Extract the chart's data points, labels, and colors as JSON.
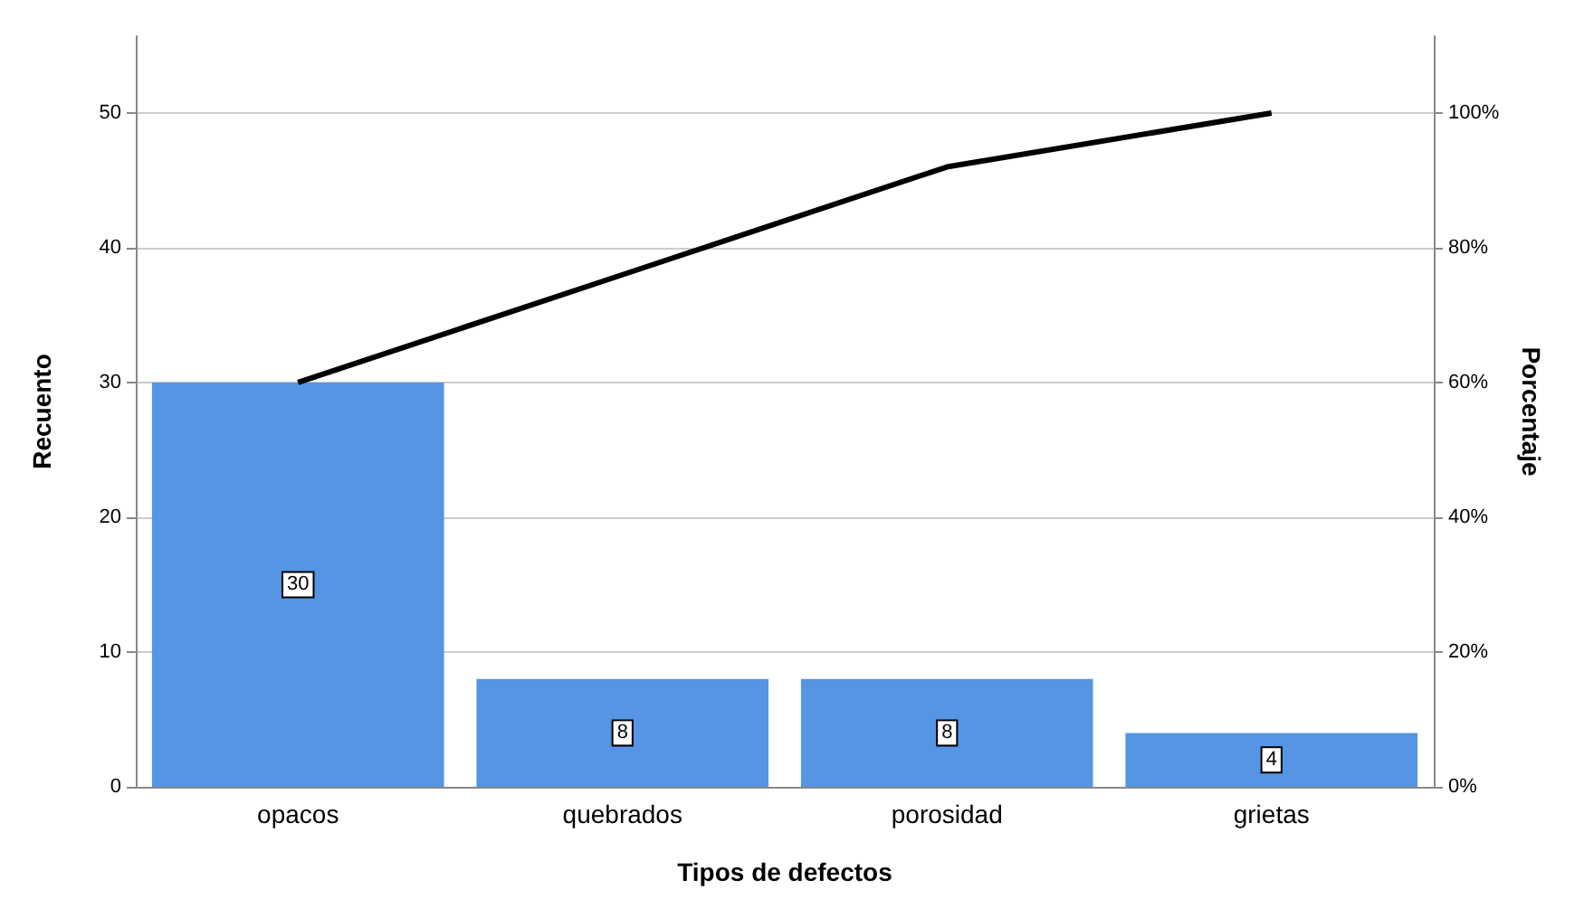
{
  "chart_data": {
    "type": "bar",
    "xlabel": "Tipos de defectos",
    "ylabel": "Recuento",
    "y2label": "Porcentaje",
    "categories": [
      "opacos",
      "quebrados",
      "porosidad",
      "grietas"
    ],
    "series": [
      {
        "color": "#5595e3",
        "values": [
          30,
          8,
          8,
          4
        ],
        "data_labels": true
      },
      {
        "type": "line",
        "axis": "y2",
        "color": "#000000",
        "values": [
          60,
          76,
          92,
          100
        ]
      }
    ],
    "ylim": [
      0,
      55.7
    ],
    "yticks": [
      0,
      10,
      20,
      30,
      40,
      50
    ],
    "y2lim": [
      0,
      111.4
    ],
    "y2ticks": [
      {
        "value": 0,
        "label": "0%"
      },
      {
        "value": 20,
        "label": "20%"
      },
      {
        "value": 40,
        "label": "40%"
      },
      {
        "value": 60,
        "label": "60%"
      },
      {
        "value": 80,
        "label": "80%"
      },
      {
        "value": 100,
        "label": "100%"
      }
    ],
    "grid": "y",
    "marker": "none",
    "line_style": "solid"
  }
}
